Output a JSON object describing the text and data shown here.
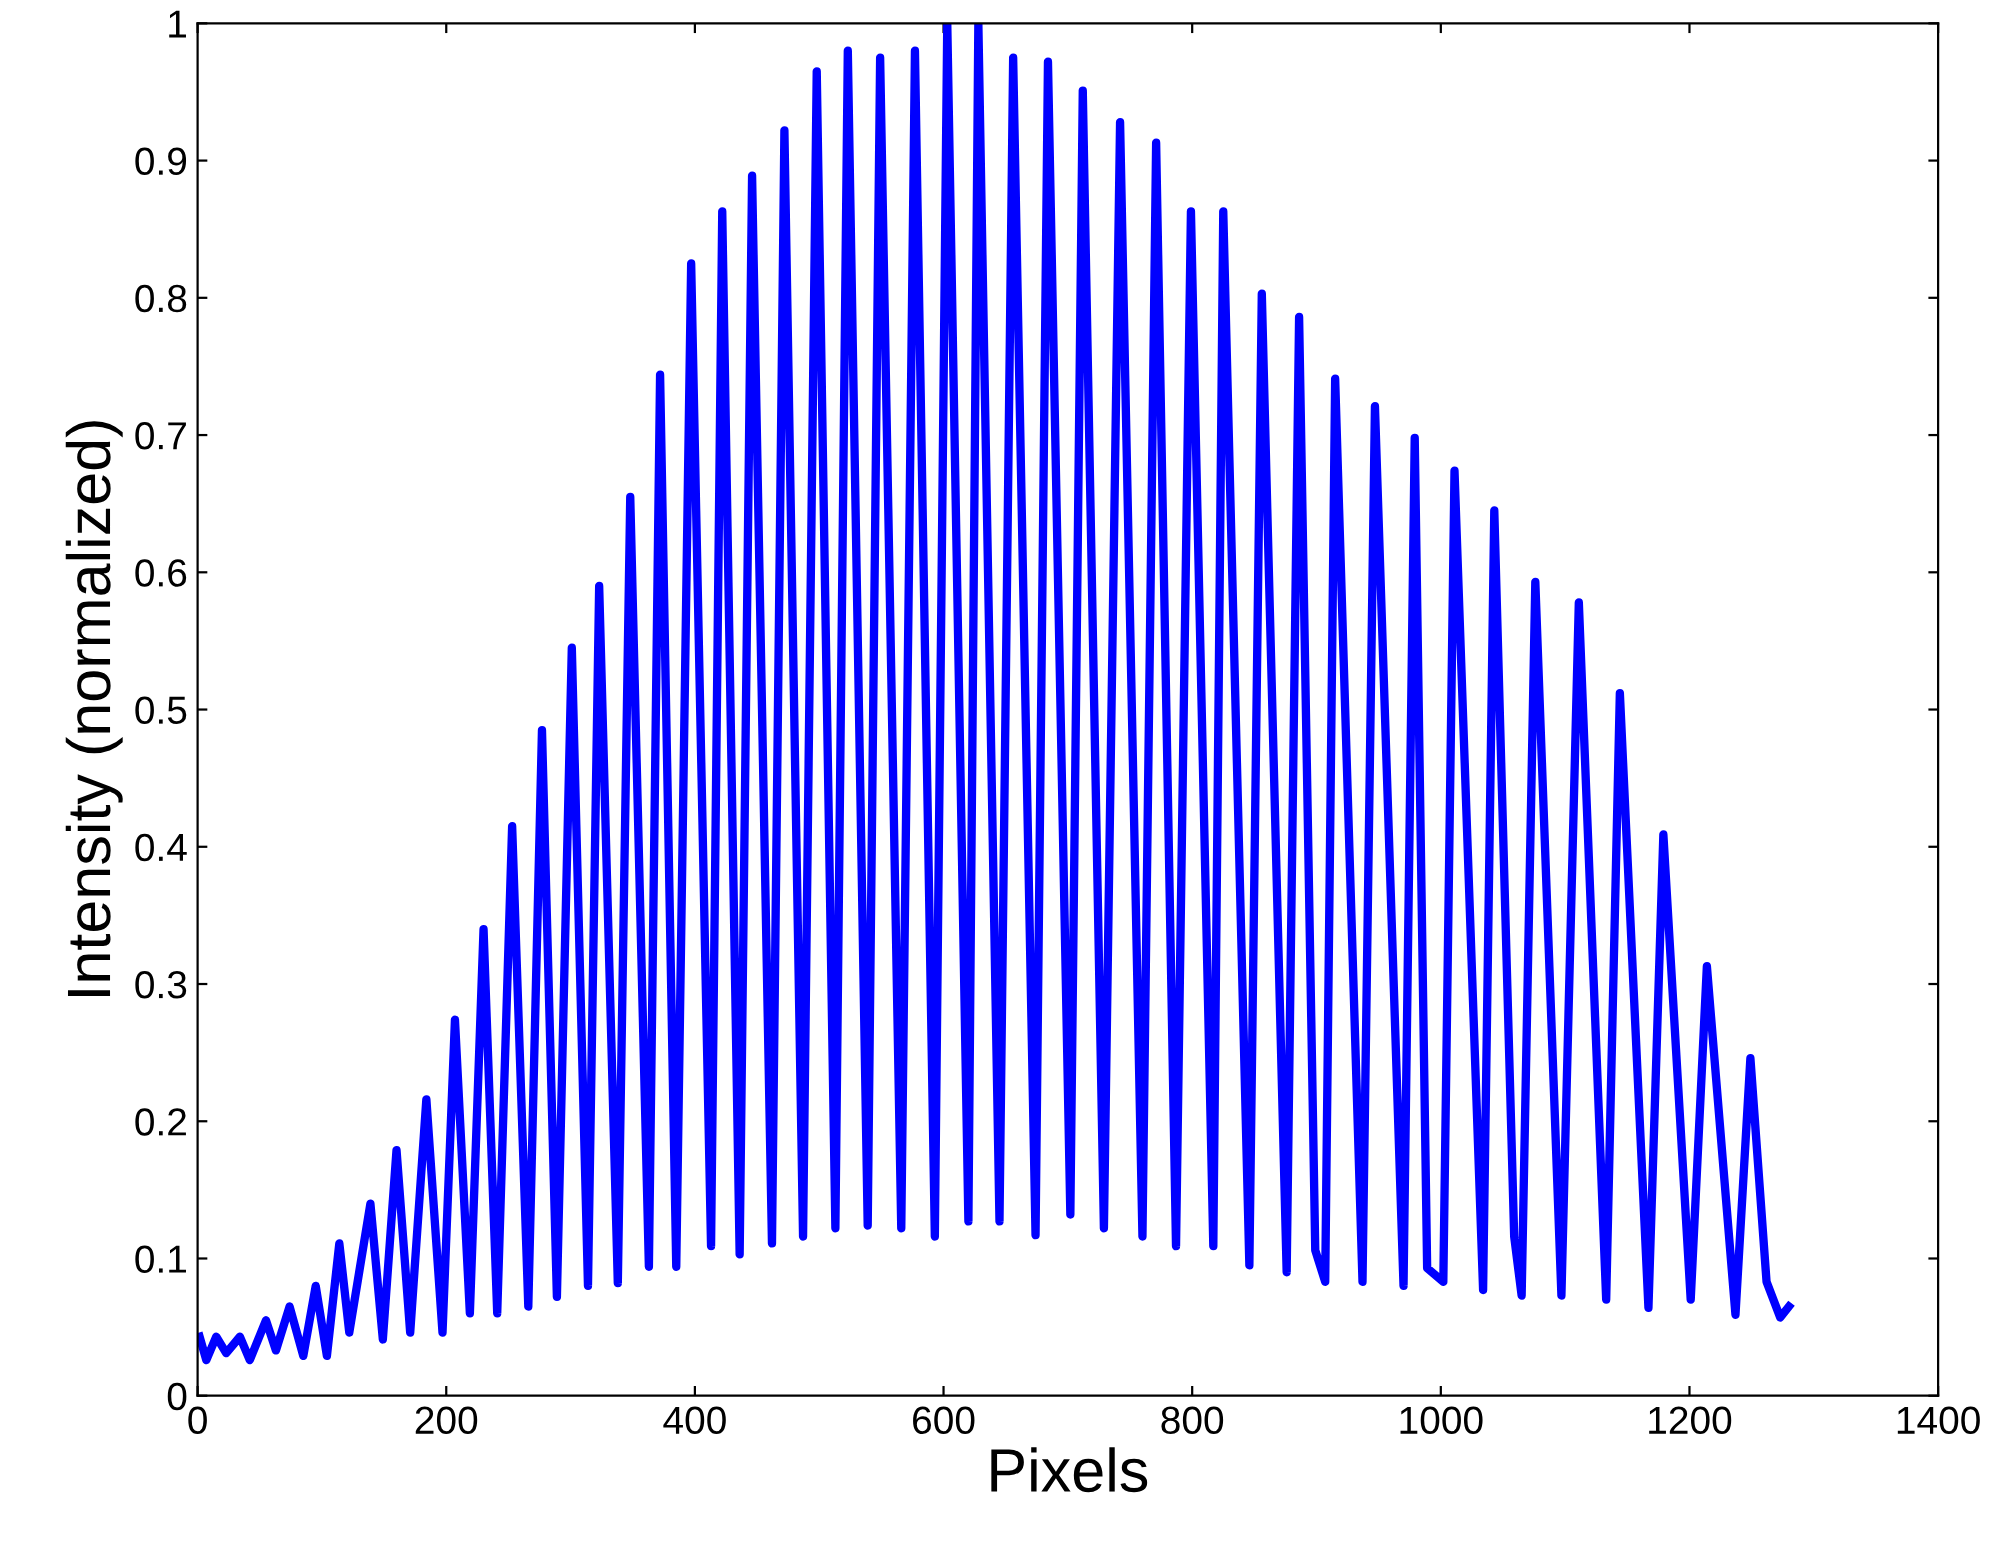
{
  "chart_data": {
    "type": "line",
    "xlabel": "Pixels",
    "ylabel": "Intensity (normalized)",
    "line_style": "solid",
    "marker": "none",
    "grid": false,
    "legend": false,
    "xlim": [
      0,
      1400
    ],
    "ylim": [
      0,
      1
    ],
    "xticks": [
      0,
      200,
      400,
      600,
      800,
      1000,
      1200,
      1400
    ],
    "yticks": [
      0,
      0.1,
      0.2,
      0.3,
      0.4,
      0.5,
      0.6,
      0.7,
      0.8,
      0.9,
      1
    ],
    "series": [
      {
        "color": "#0000ff",
        "x": [
          1.6,
          7,
          15,
          23,
          34,
          42,
          55,
          63,
          74,
          85,
          95,
          104,
          114,
          122,
          139,
          149,
          160,
          171,
          184,
          197,
          207,
          219,
          230,
          241,
          253,
          266,
          277,
          289,
          301,
          314,
          323,
          338,
          348,
          363,
          372,
          385,
          397,
          413,
          422,
          436,
          446,
          462,
          472,
          487,
          498,
          513,
          523,
          539,
          549,
          566,
          577,
          593,
          603,
          620,
          628,
          645,
          656,
          674,
          684,
          702,
          712,
          729,
          742,
          760,
          771,
          787,
          799,
          817,
          825,
          846,
          856,
          876,
          886,
          899,
          907,
          915,
          937,
          947,
          970,
          979,
          989,
          1002,
          1011,
          1034,
          1043,
          1059,
          1065,
          1076,
          1097,
          1111,
          1133,
          1144,
          1167,
          1179,
          1201,
          1214,
          1237,
          1249,
          1262,
          1273,
          1280
        ],
        "values": [
          0.043,
          0.026,
          0.043,
          0.031,
          0.043,
          0.026,
          0.055,
          0.033,
          0.065,
          0.029,
          0.08,
          0.029,
          0.111,
          0.046,
          0.14,
          0.041,
          0.179,
          0.046,
          0.216,
          0.046,
          0.274,
          0.06,
          0.34,
          0.06,
          0.415,
          0.065,
          0.485,
          0.072,
          0.545,
          0.08,
          0.59,
          0.082,
          0.655,
          0.094,
          0.744,
          0.094,
          0.825,
          0.109,
          0.863,
          0.103,
          0.889,
          0.111,
          0.922,
          0.116,
          0.965,
          0.122,
          0.98,
          0.124,
          0.975,
          0.122,
          0.98,
          0.116,
          1.0,
          0.127,
          1.0,
          0.127,
          0.975,
          0.117,
          0.972,
          0.132,
          0.951,
          0.122,
          0.928,
          0.116,
          0.913,
          0.109,
          0.863,
          0.109,
          0.863,
          0.095,
          0.803,
          0.09,
          0.786,
          0.106,
          0.083,
          0.741,
          0.083,
          0.721,
          0.08,
          0.698,
          0.093,
          0.083,
          0.674,
          0.077,
          0.645,
          0.116,
          0.073,
          0.593,
          0.073,
          0.578,
          0.07,
          0.512,
          0.064,
          0.409,
          0.07,
          0.313,
          0.059,
          0.246,
          0.083,
          0.057,
          0.065
        ]
      }
    ]
  }
}
